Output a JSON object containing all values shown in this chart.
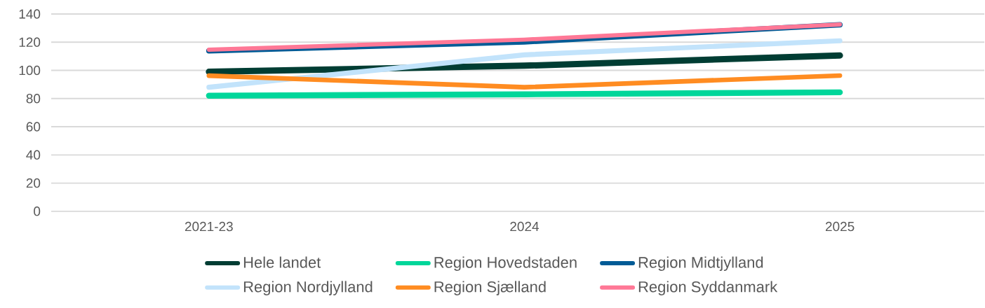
{
  "chart_data": {
    "type": "line",
    "categories": [
      "2021-23",
      "2024",
      "2025"
    ],
    "series": [
      {
        "name": "Hele landet",
        "color": "#003d33",
        "values": [
          99,
          103.3,
          110.6
        ]
      },
      {
        "name": "Region Hovedstaden",
        "color": "#00d69a",
        "values": [
          82,
          83,
          84.4
        ]
      },
      {
        "name": "Region Midtjylland",
        "color": "#005b96",
        "values": [
          113.9,
          120.2,
          132.4
        ]
      },
      {
        "name": "Region Nordjylland",
        "color": "#c2e3fb",
        "values": [
          88,
          111,
          121
        ]
      },
      {
        "name": "Region Sjælland",
        "color": "#ff8c21",
        "values": [
          96.2,
          88,
          96.3
        ]
      },
      {
        "name": "Region Syddanmark",
        "color": "#ff7896",
        "values": [
          114.7,
          121.8,
          132.6
        ]
      }
    ],
    "ylim": [
      0,
      140
    ],
    "yticks": [
      0,
      20,
      40,
      60,
      80,
      100,
      120,
      140
    ],
    "grid": "y",
    "legend": "bottom"
  }
}
